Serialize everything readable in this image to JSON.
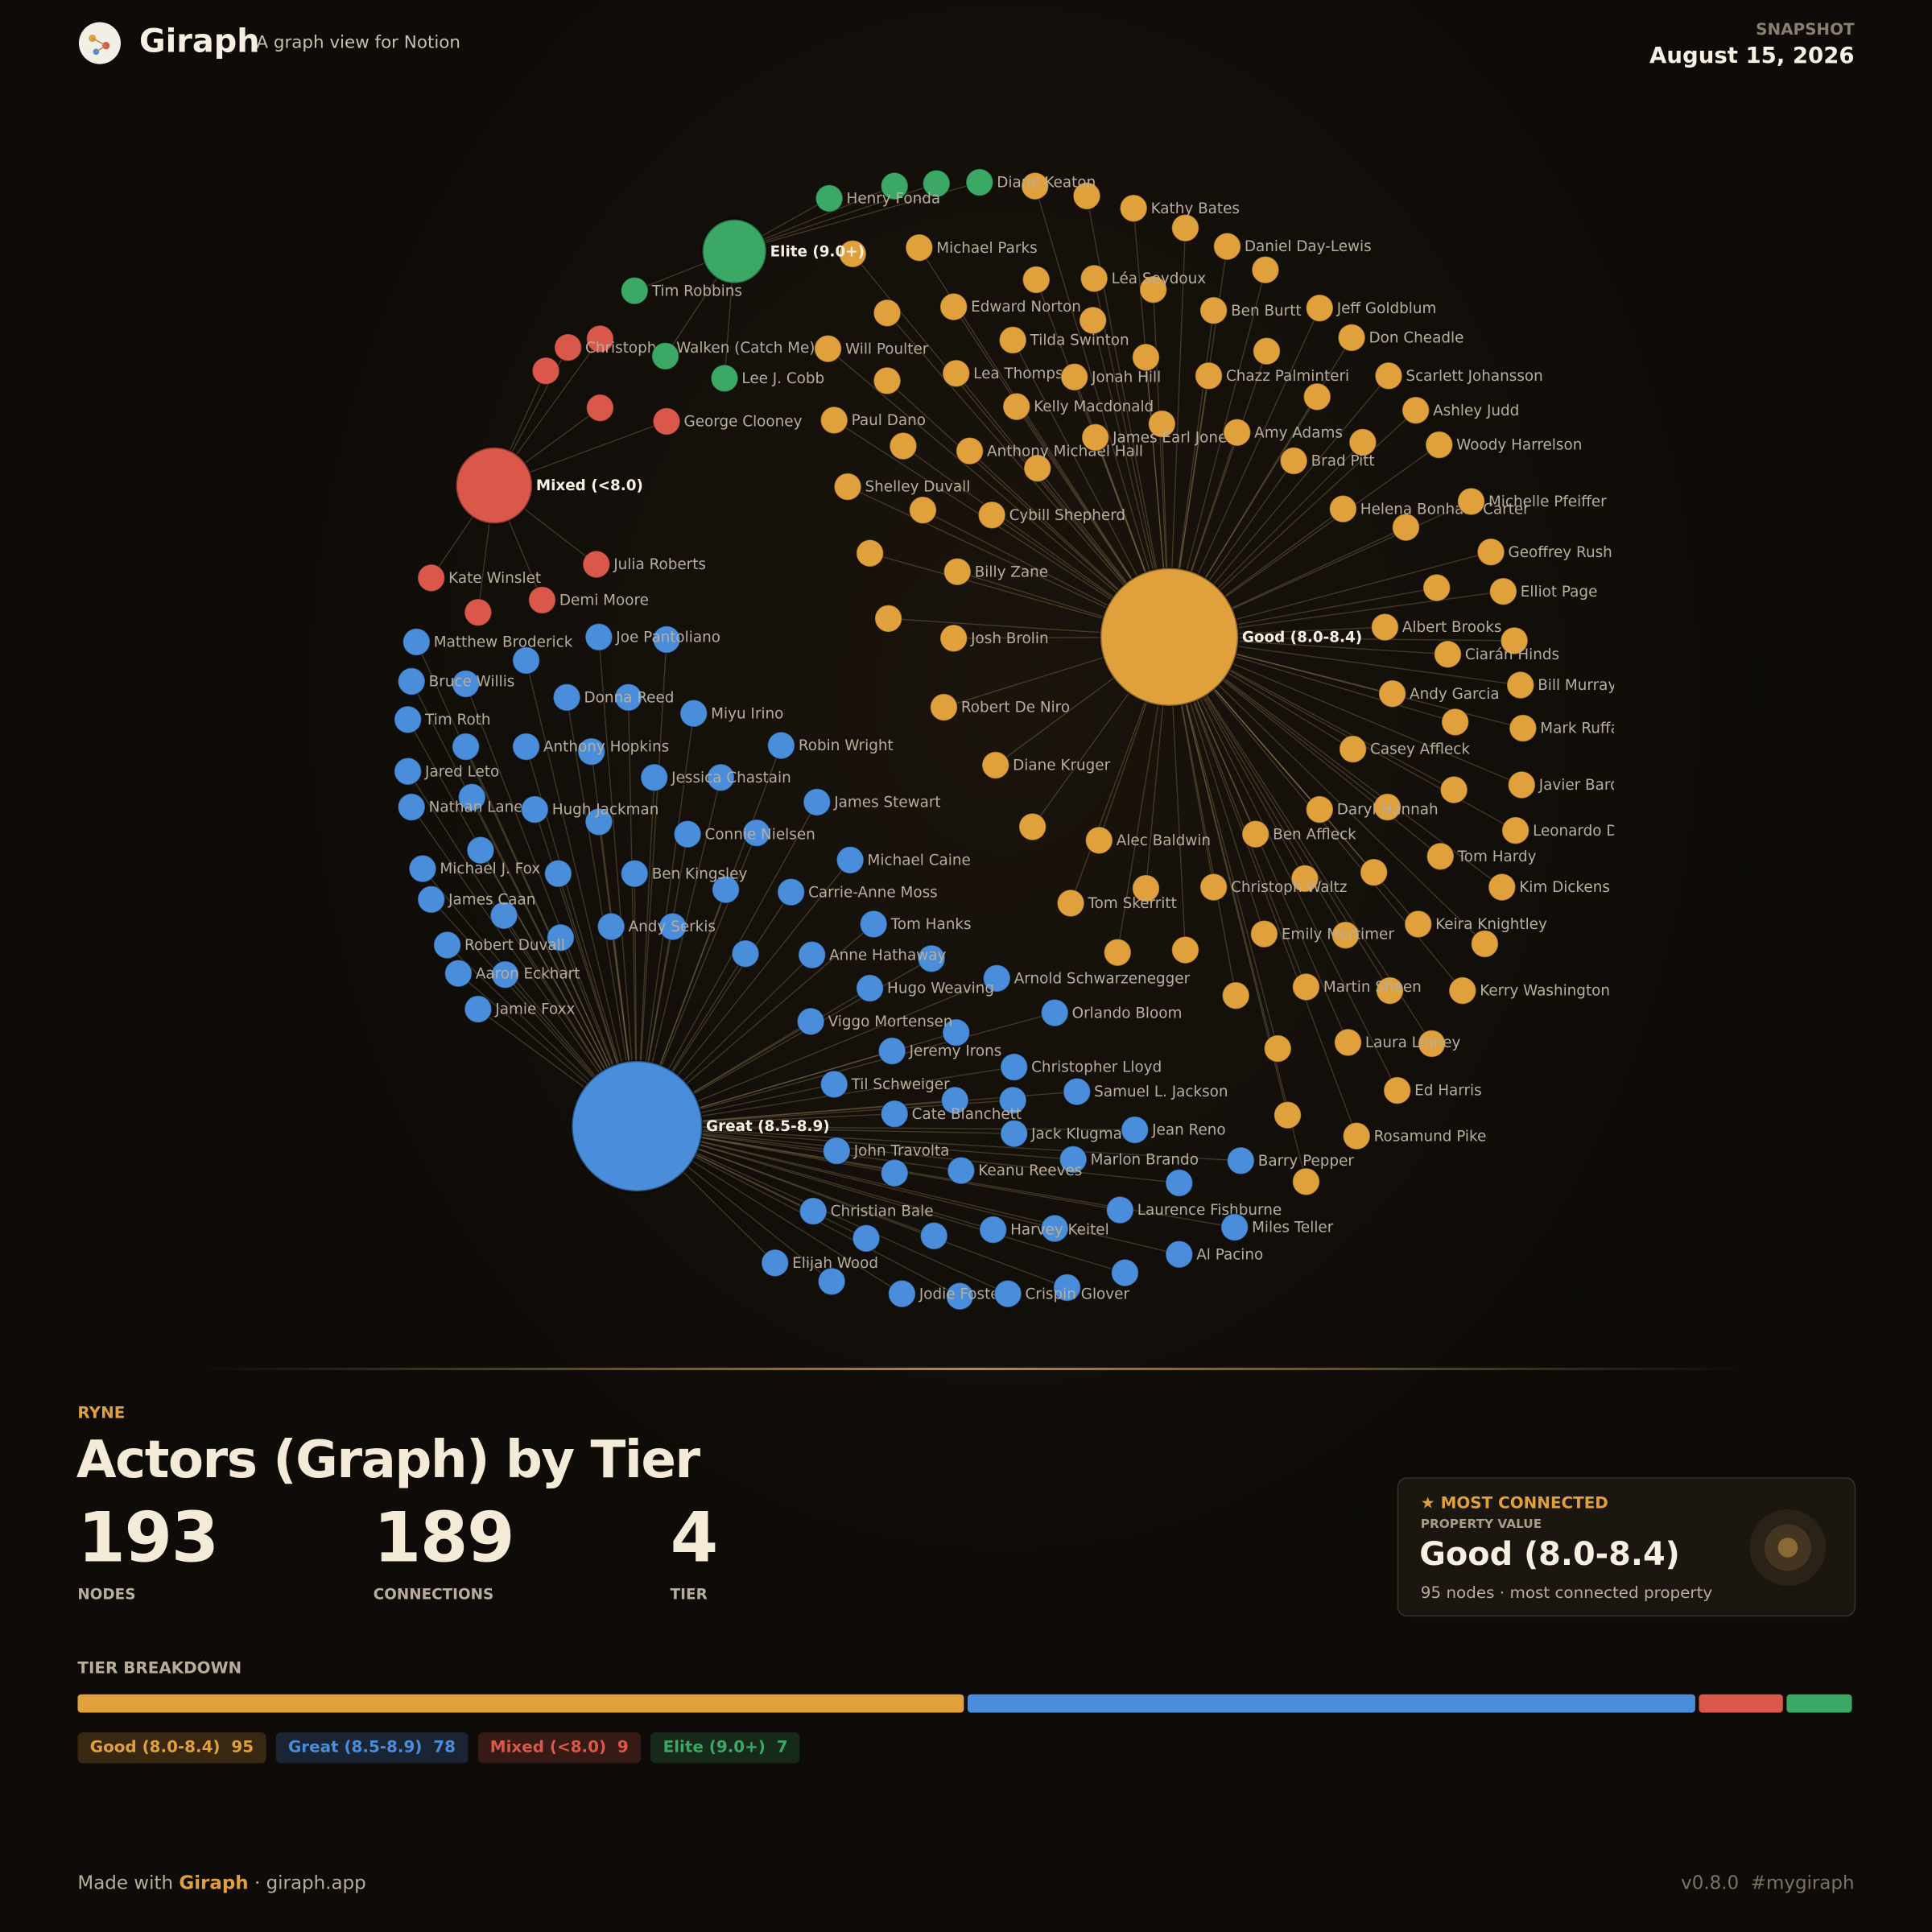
{
  "header": {
    "brand": "Giraph",
    "tagline": "A graph view for Notion",
    "snapshot_label": "SNAPSHOT",
    "snapshot_date": "August 15, 2026"
  },
  "tiers": [
    {
      "name": "Good (8.0-8.4)",
      "count": 95,
      "color": "#e0a03c"
    },
    {
      "name": "Great (8.5-8.9)",
      "count": 78,
      "color": "#4a8edb"
    },
    {
      "name": "Mixed (<8.0)",
      "count": 9,
      "color": "#d9584a"
    },
    {
      "name": "Elite (9.0+)",
      "count": 7,
      "color": "#3ba866"
    }
  ],
  "graph": {
    "tier_nodes": [
      {
        "labels": [
          "Kathy Bates",
          "Michael Parks",
          "Daniel Day-Lewis",
          "Léa Seydoux",
          "Edward Norton",
          "Ben Burtt",
          "Jeff Goldblum",
          "Tilda Swinton",
          "Don Cheadle",
          "Will Poulter",
          "Lea Thompson",
          "Jonah Hill",
          "Chazz Palminteri",
          "Scarlett Johansson",
          "Kelly Macdonald",
          "Ashley Judd",
          "Paul Dano",
          "Anthony Michael Hall",
          "James Earl Jones",
          "Amy Adams",
          "Woody Harrelson",
          "Brad Pitt",
          "Shelley Duvall",
          "Helena Bonham Carter",
          "Michelle Pfeiffer",
          "Cybill Shepherd",
          "Geoffrey Rush",
          "Billy Zane",
          "Elliot Page",
          "Albert Brooks",
          "Josh Brolin",
          "Ciarán Hinds",
          "Bill Murray",
          "Andy Garcia",
          "Robert De Niro",
          "Mark Ruffalo",
          "Casey Affleck",
          "Diane Kruger",
          "Javier Bardem",
          "Daryl Hannah",
          "Leonardo DiCaprio",
          "Ben Affleck",
          "Alec Baldwin",
          "Tom Hardy",
          "Christoph Waltz",
          "Kim Dickens",
          "Tom Skerritt",
          "Keira Knightley",
          "Emily Mortimer",
          "Martin Sheen",
          "Kerry Washington",
          "Laura Linney",
          "Ed Harris",
          "Rosamund Pike"
        ]
      },
      {
        "labels": [
          "Matthew Broderick",
          "Joe Pantoliano",
          "Bruce Willis",
          "Donna Reed",
          "Miyu Irino",
          "Tim Roth",
          "Anthony Hopkins",
          "Robin Wright",
          "Jared Leto",
          "Jessica Chastain",
          "Nathan Lane",
          "Hugh Jackman",
          "James Stewart",
          "Connie Nielsen",
          "Michael Caine",
          "Michael J. Fox",
          "Ben Kingsley",
          "James Caan",
          "Carrie-Anne Moss",
          "Tom Hanks",
          "Andy Serkis",
          "Robert Duvall",
          "Anne Hathaway",
          "Aaron Eckhart",
          "Arnold Schwarzenegger",
          "Hugo Weaving",
          "Jamie Foxx",
          "Orlando Bloom",
          "Viggo Mortensen",
          "Jeremy Irons",
          "Christopher Lloyd",
          "Til Schweiger",
          "Samuel L. Jackson",
          "Cate Blanchett",
          "Jack Klugman",
          "Jean Reno",
          "John Travolta",
          "Marlon Brando",
          "Barry Pepper",
          "Keanu Reeves",
          "Laurence Fishburne",
          "Christian Bale",
          "Miles Teller",
          "Harvey Keitel",
          "Al Pacino",
          "Elijah Wood",
          "Jodie Foster",
          "Crispin Glover"
        ]
      },
      {
        "labels": [
          "Christopher Walken (Catch Me)",
          "George Clooney",
          "Kate Winslet",
          "Julia Roberts",
          "Demi Moore"
        ]
      },
      {
        "labels": [
          "Henry Fonda",
          "Diane Keaton",
          "Tim Robbins",
          "Lee J. Cobb"
        ]
      }
    ]
  },
  "summary": {
    "eyebrow": "RYNE",
    "title": "Actors (Graph) by Tier",
    "stats": [
      {
        "value": 193,
        "label": "NODES"
      },
      {
        "value": 189,
        "label": "CONNECTIONS"
      },
      {
        "value": 4,
        "label": "TIER"
      }
    ]
  },
  "card": {
    "heading": "MOST CONNECTED",
    "sublabel": "PROPERTY VALUE",
    "value": "Good (8.0-8.4)",
    "note": "95 nodes · most connected property"
  },
  "breakdown": {
    "label": "TIER BREAKDOWN"
  },
  "footer": {
    "made_with": "Made with",
    "brand": "Giraph",
    "site": "· giraph.app",
    "version": "v0.8.0",
    "tag": "#mygiraph"
  }
}
